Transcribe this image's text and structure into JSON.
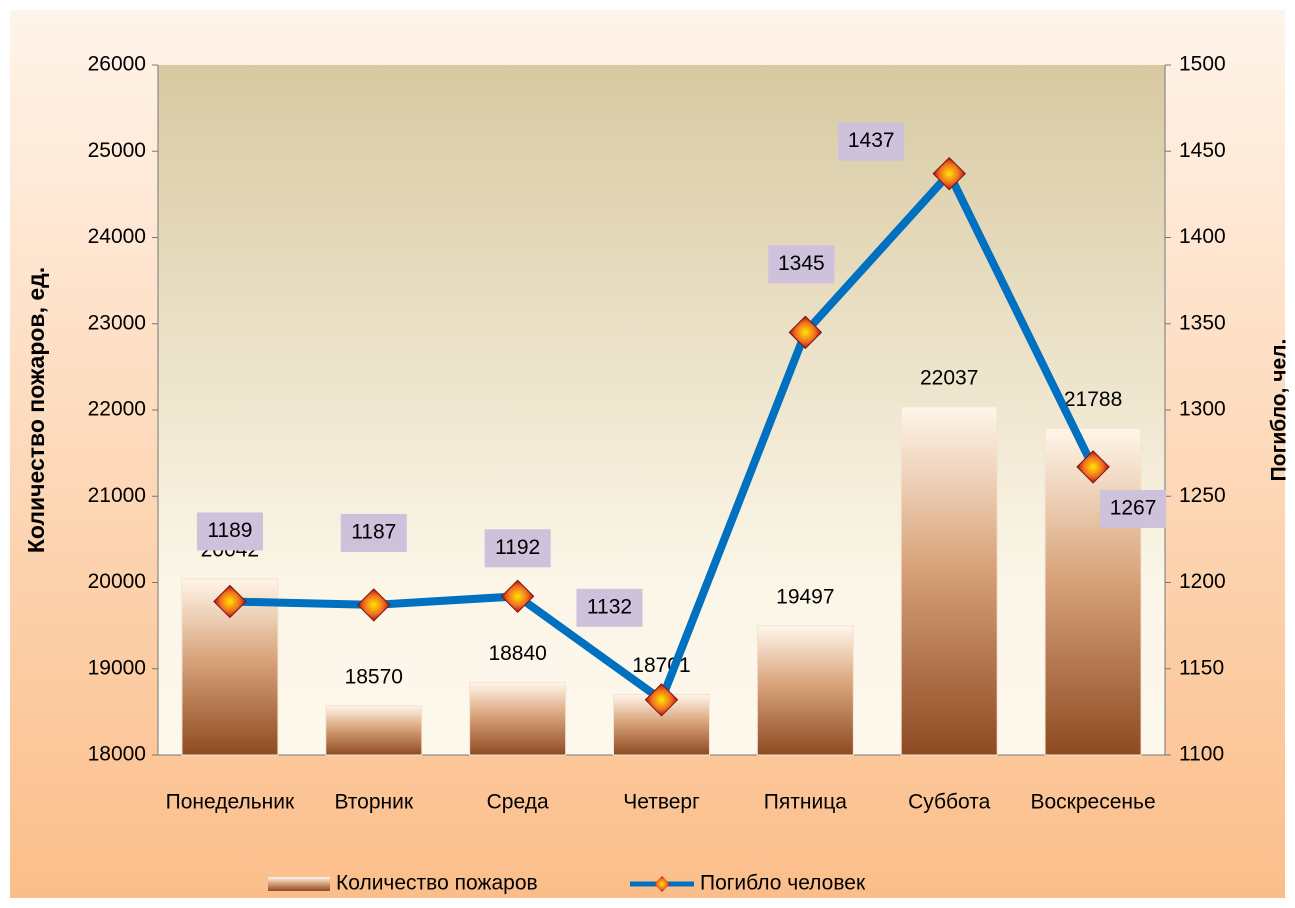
{
  "chart_data": {
    "type": "bar",
    "categories": [
      "Понедельник",
      "Вторник",
      "Среда",
      "Четверг",
      "Пятница",
      "Суббота",
      "Воскресенье"
    ],
    "series": [
      {
        "name": "Количество пожаров",
        "color": "#b86b3c",
        "values": [
          20042,
          18570,
          18840,
          18701,
          19497,
          22037,
          21788
        ]
      },
      {
        "name": "Погибло человек",
        "type": "line",
        "axis": "y2",
        "color": "#0070c0",
        "values": [
          1189,
          1187,
          1192,
          1132,
          1345,
          1437,
          1267
        ]
      }
    ],
    "ylabel": "Количество пожаров, ед.",
    "y2label": "Погибло, чел.",
    "ylim": [
      18000,
      26000
    ],
    "yticks": [
      18000,
      19000,
      20000,
      21000,
      22000,
      23000,
      24000,
      25000,
      26000
    ],
    "y2lim": [
      1100,
      1500
    ],
    "y2ticks": [
      1100,
      1150,
      1200,
      1250,
      1300,
      1350,
      1400,
      1450,
      1500
    ],
    "legend": "bottom"
  }
}
